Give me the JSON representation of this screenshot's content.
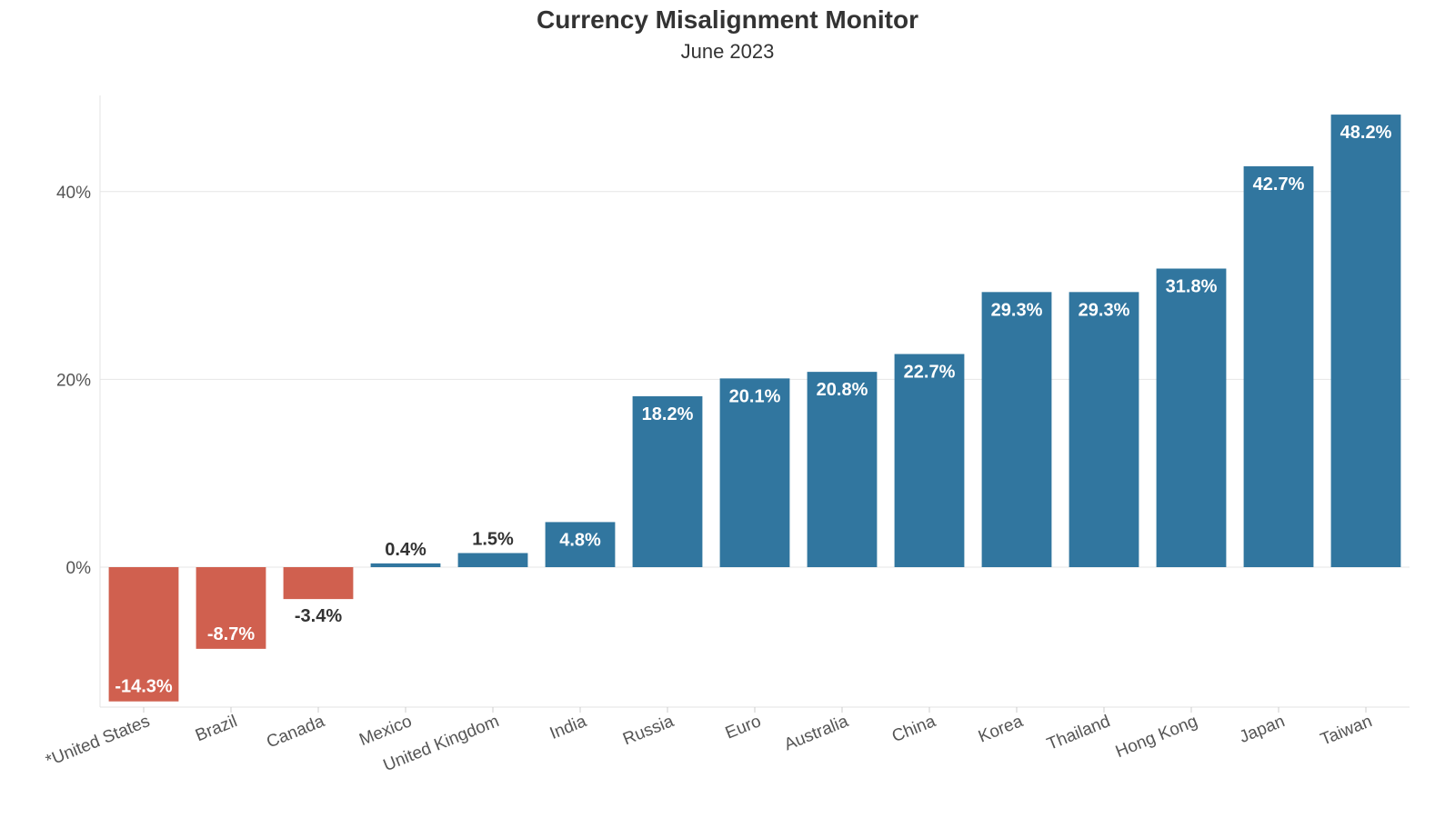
{
  "chart_data": {
    "type": "bar",
    "title": "Currency Misalignment Monitor",
    "subtitle": "June 2023",
    "xlabel": "",
    "ylabel": "",
    "categories": [
      "*United States",
      "Brazil",
      "Canada",
      "Mexico",
      "United Kingdom",
      "India",
      "Russia",
      "Euro",
      "Australia",
      "China",
      "Korea",
      "Thailand",
      "Hong Kong",
      "Japan",
      "Taiwan"
    ],
    "values": [
      -14.3,
      -8.7,
      -3.4,
      0.4,
      1.5,
      4.8,
      18.2,
      20.1,
      20.8,
      22.7,
      29.3,
      29.3,
      31.8,
      42.7,
      48.2
    ],
    "data_labels": [
      "-14.3%",
      "-8.7%",
      "-3.4%",
      "0.4%",
      "1.5%",
      "4.8%",
      "18.2%",
      "20.1%",
      "20.8%",
      "22.7%",
      "29.3%",
      "29.3%",
      "31.8%",
      "42.7%",
      "48.2%"
    ],
    "yticks": [
      0,
      20,
      40
    ],
    "ytick_labels": [
      "0%",
      "20%",
      "40%"
    ],
    "ylim": [
      -15,
      50
    ],
    "grid": true,
    "legend": "none",
    "colors": {
      "positive": "#31769f",
      "negative": "#d0604f"
    }
  }
}
